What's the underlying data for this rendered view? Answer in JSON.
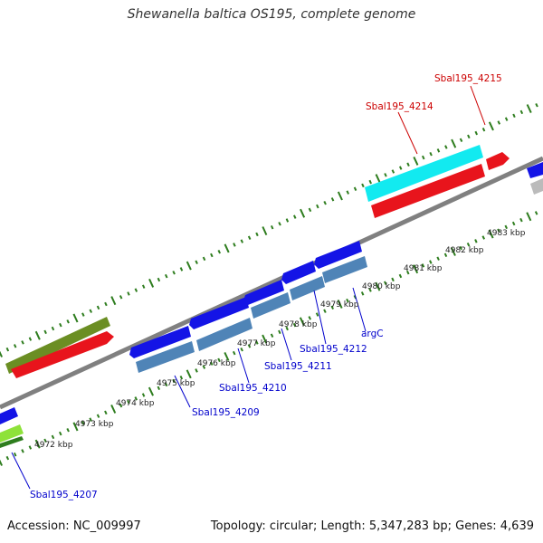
{
  "title": "Shewanella baltica OS195, complete genome",
  "accession": "Accession: NC_009997",
  "topology": "Topology: circular; Length: 5,347,283 bp; Genes: 4,639",
  "colors": {
    "backbone": "#8a8a8a",
    "tick": "#2e7d1e",
    "forward_red": "#e8141c",
    "forward_cyan": "#12eaf0",
    "forward_olive": "#6b8e23",
    "reverse_blue": "#1414e6",
    "reverse_steel": "#4f84b7",
    "reverse_green": "#8ee23a",
    "label_red": "#cc0000",
    "label_blue": "#0000cc",
    "gray": "#bbbbbb"
  },
  "tick_labels": [
    "4972 kbp",
    "4973 kbp",
    "4974 kbp",
    "4975 kbp",
    "4976 kbp",
    "4977 kbp",
    "4978 kbp",
    "4979 kbp",
    "4980 kbp",
    "4981 kbp",
    "4982 kbp",
    "4983 kbp"
  ],
  "gene_labels": {
    "sbal4215": "Sbal195_4215",
    "sbal4214": "Sbal195_4214",
    "sbal4212": "Sbal195_4212",
    "sbal4211": "Sbal195_4211",
    "sbal4210": "Sbal195_4210",
    "sbal4209": "Sbal195_4209",
    "sbal4207": "Sbal195_4207",
    "argc": "argC"
  }
}
